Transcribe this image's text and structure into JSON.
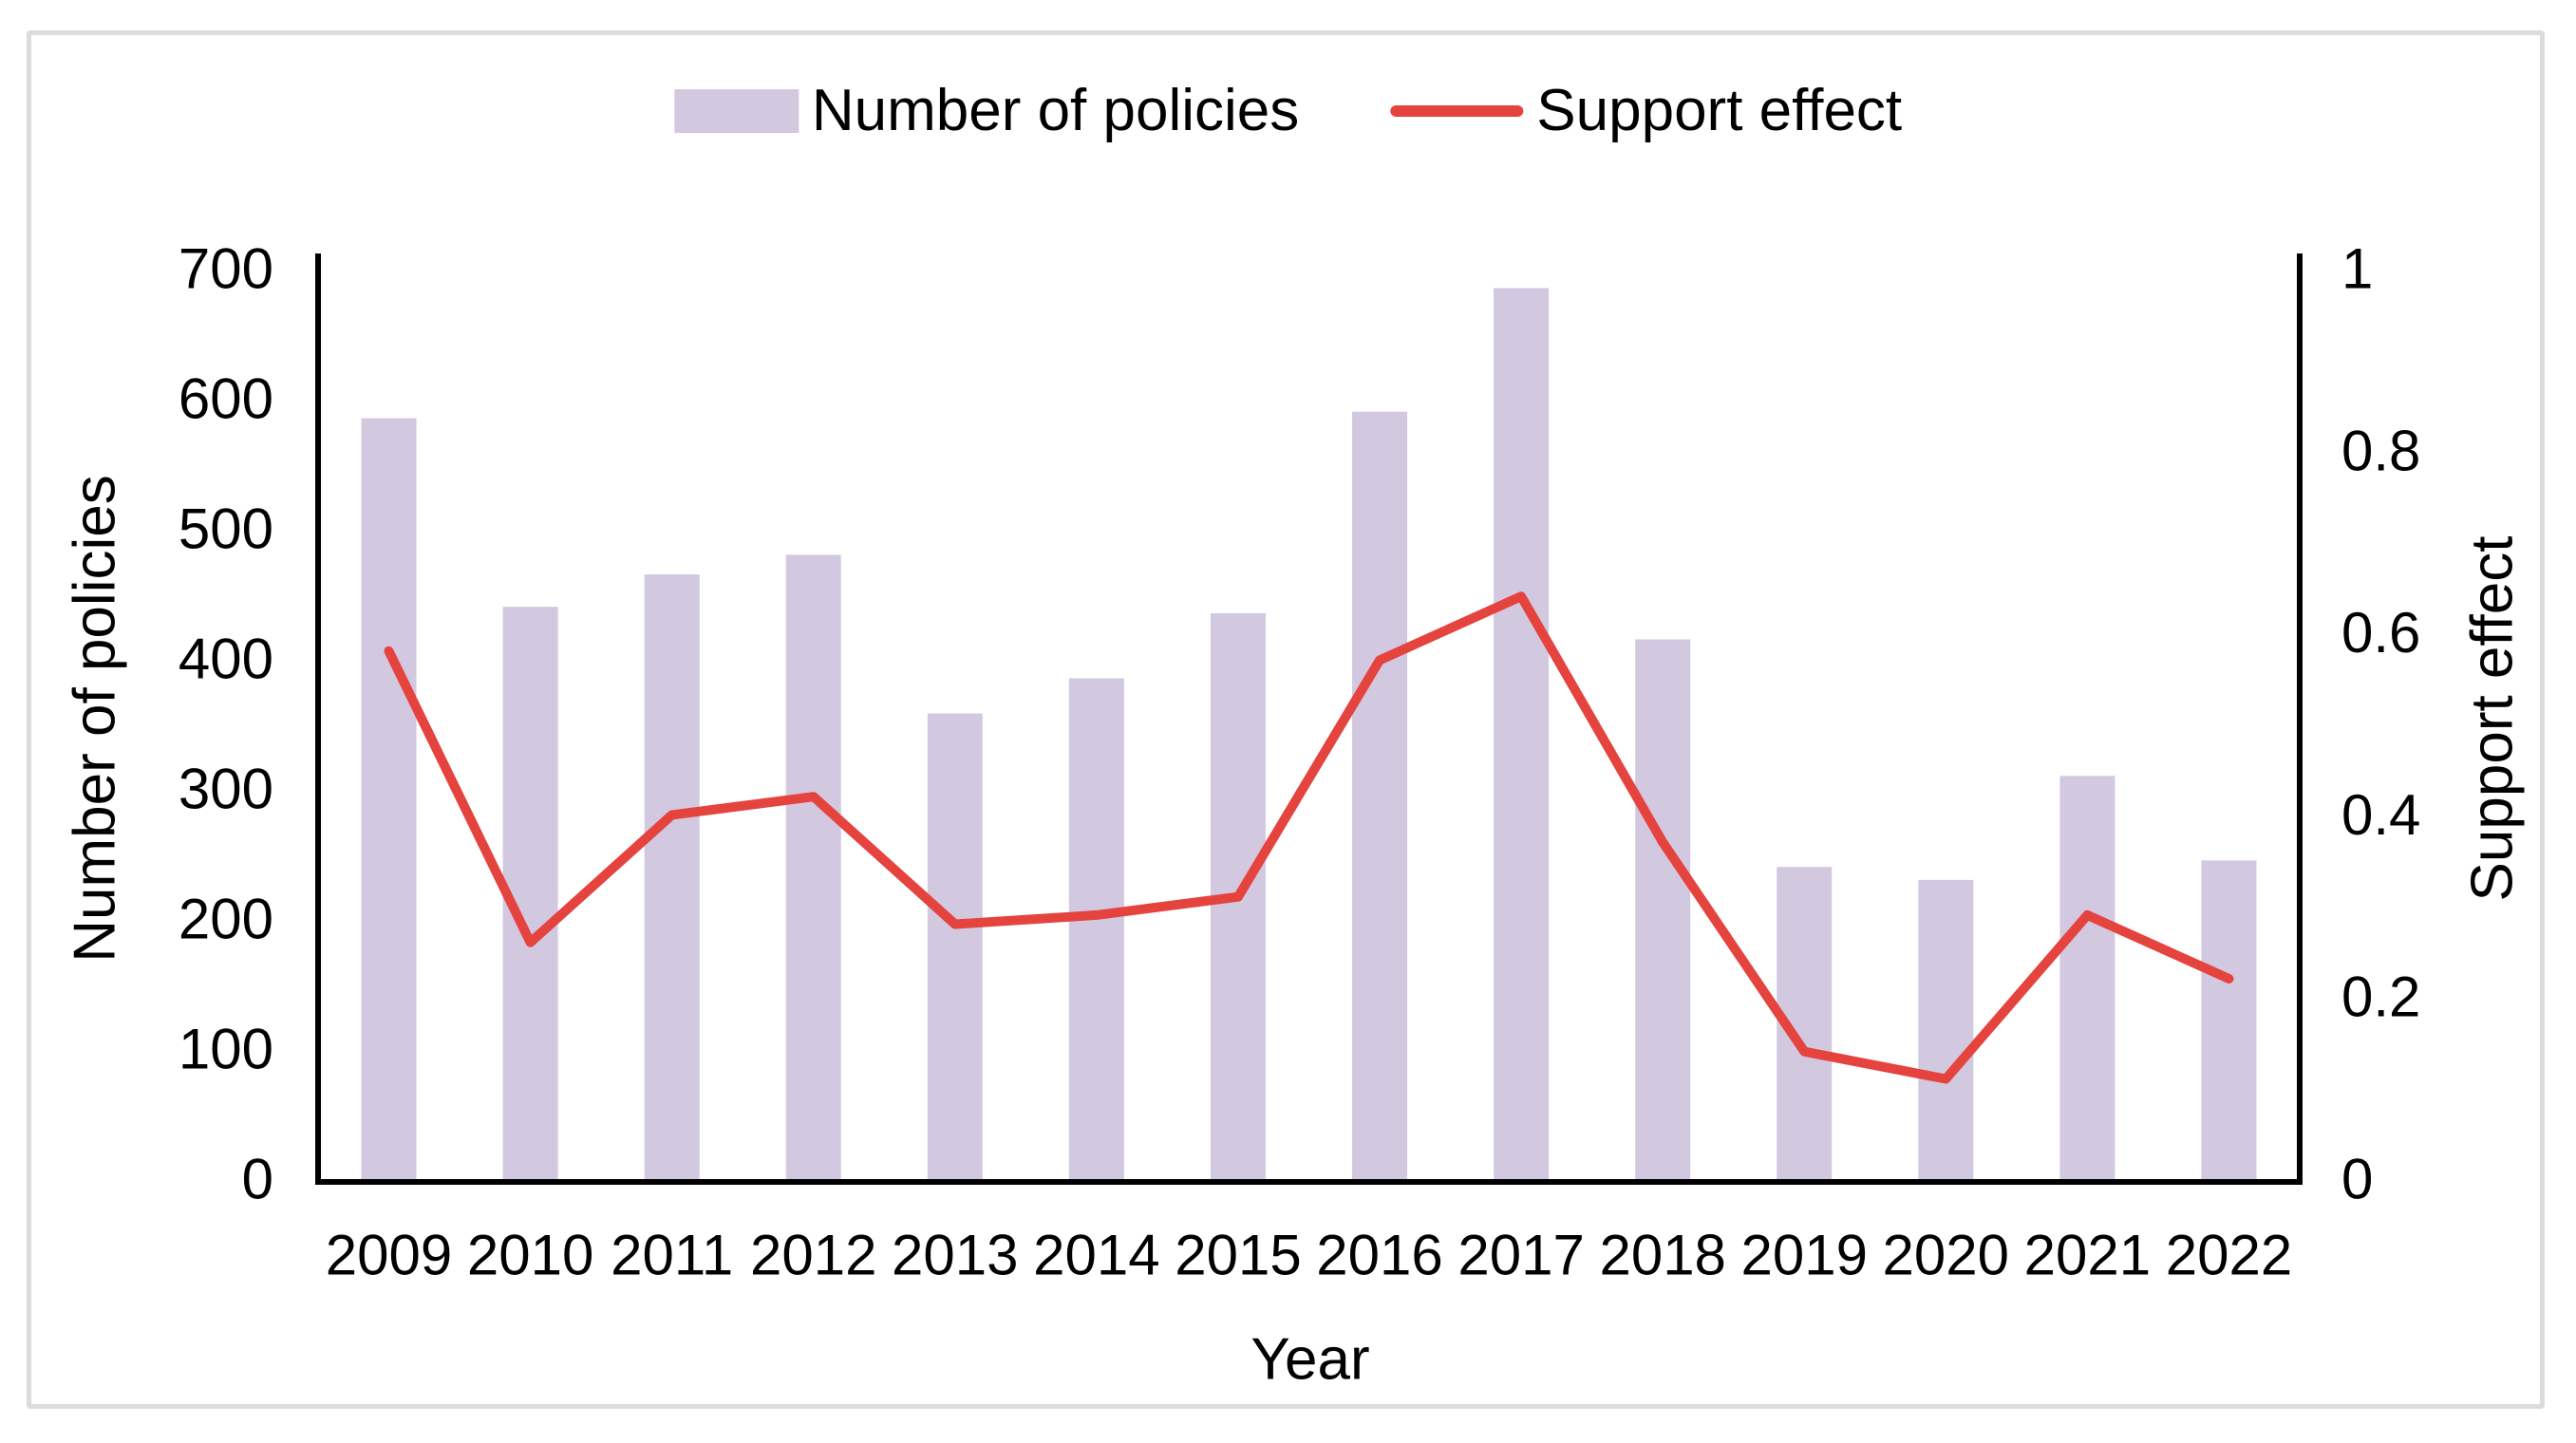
{
  "figure": {
    "background": "#ffffff",
    "frame_color": "#dcdcdc"
  },
  "legend": {
    "items": [
      {
        "label": "Number of policies",
        "marker": "bar-swatch",
        "color": "#d2c8e0"
      },
      {
        "label": "Support effect",
        "marker": "line-swatch",
        "color": "#e5433e"
      }
    ]
  },
  "chart_data": {
    "type": "bar+line",
    "categories": [
      "2009",
      "2010",
      "2011",
      "2012",
      "2013",
      "2014",
      "2015",
      "2016",
      "2017",
      "2018",
      "2019",
      "2020",
      "2021",
      "2022"
    ],
    "series": [
      {
        "name": "Number of policies",
        "type": "bar",
        "axis": "left",
        "color": "#d2c8e0",
        "values": [
          585,
          440,
          465,
          480,
          358,
          385,
          435,
          590,
          685,
          415,
          240,
          230,
          310,
          245
        ]
      },
      {
        "name": "Support effect",
        "type": "line",
        "axis": "right",
        "color": "#e5433e",
        "values": [
          0.58,
          0.26,
          0.4,
          0.42,
          0.28,
          0.29,
          0.31,
          0.57,
          0.64,
          0.37,
          0.14,
          0.11,
          0.29,
          0.22
        ]
      }
    ],
    "xlabel": "Year",
    "left_axis": {
      "label": "Number of policies",
      "min": 0,
      "max": 700,
      "ticks": [
        0,
        100,
        200,
        300,
        400,
        500,
        600,
        700
      ]
    },
    "right_axis": {
      "label": "Support effect",
      "min": 0,
      "max": 1,
      "ticks": [
        "0",
        "0.2",
        "0.4",
        "0.6",
        "0.8",
        "1"
      ]
    },
    "grid": false,
    "legend_position": "top-center",
    "axis_color": "#000000",
    "text_color": "#000000"
  }
}
